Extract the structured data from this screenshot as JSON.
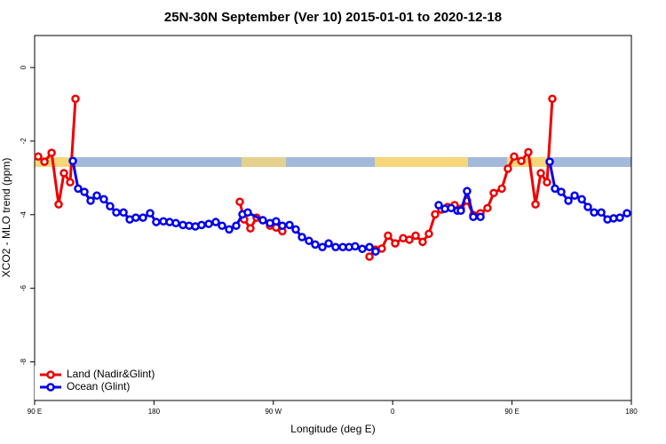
{
  "chart_data": {
    "type": "line",
    "title": "25N-30N September (Ver 10)   2015-01-01 to 2020-12-18",
    "x_label": "Longitude (deg E)",
    "y_label": "XCO2 - MLO trend (ppm)",
    "xlim": [
      90,
      540
    ],
    "ylim": [
      -9.05,
      0.87
    ],
    "xticks": [
      {
        "value": 90,
        "label": "90 E"
      },
      180,
      {
        "value": 270,
        "label": "90 W"
      },
      {
        "value": 360,
        "label": "0"
      },
      {
        "value": 450,
        "label": "90 E"
      },
      {
        "value": 540,
        "label": "180"
      }
    ],
    "yticks": [
      0,
      -2,
      -4,
      -6,
      -8
    ],
    "legend": "bottom-left",
    "series": [
      {
        "name": "Land (Nadir&Glint)",
        "color": "#ee0000",
        "x": [
          92.7,
          97.4,
          102.8,
          108.1,
          112.1,
          116.8,
          120.8,
          null,
          244.7,
          248.0,
          252.7,
          257.4,
          262.1,
          267.5,
          272.1,
          276.8,
          null,
          342.5,
          347.1,
          351.8,
          356.5,
          361.9,
          367.9,
          372.6,
          377.3,
          382.6,
          387.3,
          392.0,
          396.7,
          401.4,
          406.7,
          411.4,
          416.1,
          420.8,
          426.2,
          431.5,
          436.2,
          442.3,
          446.9,
          451.6,
          457.0,
          462.3,
          467.7,
          471.7,
          476.4,
          480.4
        ],
        "values": [
          -2.42,
          -2.56,
          -2.32,
          -3.72,
          -2.87,
          -3.12,
          -0.85,
          null,
          -3.65,
          -4.13,
          -4.37,
          -4.08,
          -4.15,
          -4.3,
          -4.35,
          -4.45,
          null,
          -5.14,
          -4.95,
          -4.92,
          -4.57,
          -4.78,
          -4.64,
          -4.68,
          -4.57,
          -4.74,
          -4.52,
          -3.99,
          -3.86,
          -3.79,
          -3.74,
          -3.84,
          -3.62,
          -4.01,
          -3.96,
          -3.82,
          -3.41,
          -3.29,
          -2.75,
          -2.42,
          -2.54,
          -2.3,
          -3.72,
          -2.87,
          -3.12,
          -0.85
        ]
      },
      {
        "name": "Ocean (Glint)",
        "color": "#0000ee",
        "x": [
          118.8,
          122.8,
          127.5,
          132.2,
          136.9,
          142.2,
          146.9,
          151.6,
          157.0,
          161.7,
          166.3,
          171.7,
          177.1,
          181.7,
          187.1,
          191.8,
          196.5,
          201.8,
          206.5,
          211.2,
          215.9,
          221.3,
          226.6,
          231.3,
          236.7,
          242.0,
          246.7,
          250.7,
          262.1,
          267.5,
          272.1,
          276.8,
          282.2,
          286.9,
          291.6,
          296.9,
          301.6,
          307.0,
          311.7,
          317.0,
          322.4,
          327.1,
          331.7,
          337.1,
          342.5,
          347.1,
          null,
          394.7,
          399.4,
          404.1,
          408.8,
          411.4,
          416.1,
          420.8,
          426.2,
          null,
          478.4,
          482.4,
          487.1,
          492.5,
          497.2,
          502.6,
          507.2,
          511.9,
          517.3,
          522.0,
          526.6,
          531.3,
          536.7
        ],
        "values": [
          -2.54,
          -3.29,
          -3.38,
          -3.62,
          -3.48,
          -3.58,
          -3.77,
          -3.94,
          -3.94,
          -4.13,
          -4.08,
          -4.08,
          -3.96,
          -4.2,
          -4.18,
          -4.2,
          -4.23,
          -4.28,
          -4.3,
          -4.32,
          -4.28,
          -4.25,
          -4.2,
          -4.3,
          -4.4,
          -4.3,
          -3.99,
          -3.94,
          -4.15,
          -4.23,
          -4.18,
          -4.3,
          -4.28,
          -4.4,
          -4.61,
          -4.71,
          -4.81,
          -4.88,
          -4.78,
          -4.88,
          -4.88,
          -4.88,
          -4.86,
          -4.93,
          -4.88,
          -5.0,
          null,
          -3.74,
          -3.84,
          -3.82,
          -3.89,
          -3.89,
          -3.36,
          -4.06,
          -4.06,
          null,
          -2.56,
          -3.29,
          -3.38,
          -3.62,
          -3.48,
          -3.58,
          -3.79,
          -3.94,
          -3.94,
          -4.13,
          -4.1,
          -4.08,
          -3.96
        ]
      }
    ]
  }
}
